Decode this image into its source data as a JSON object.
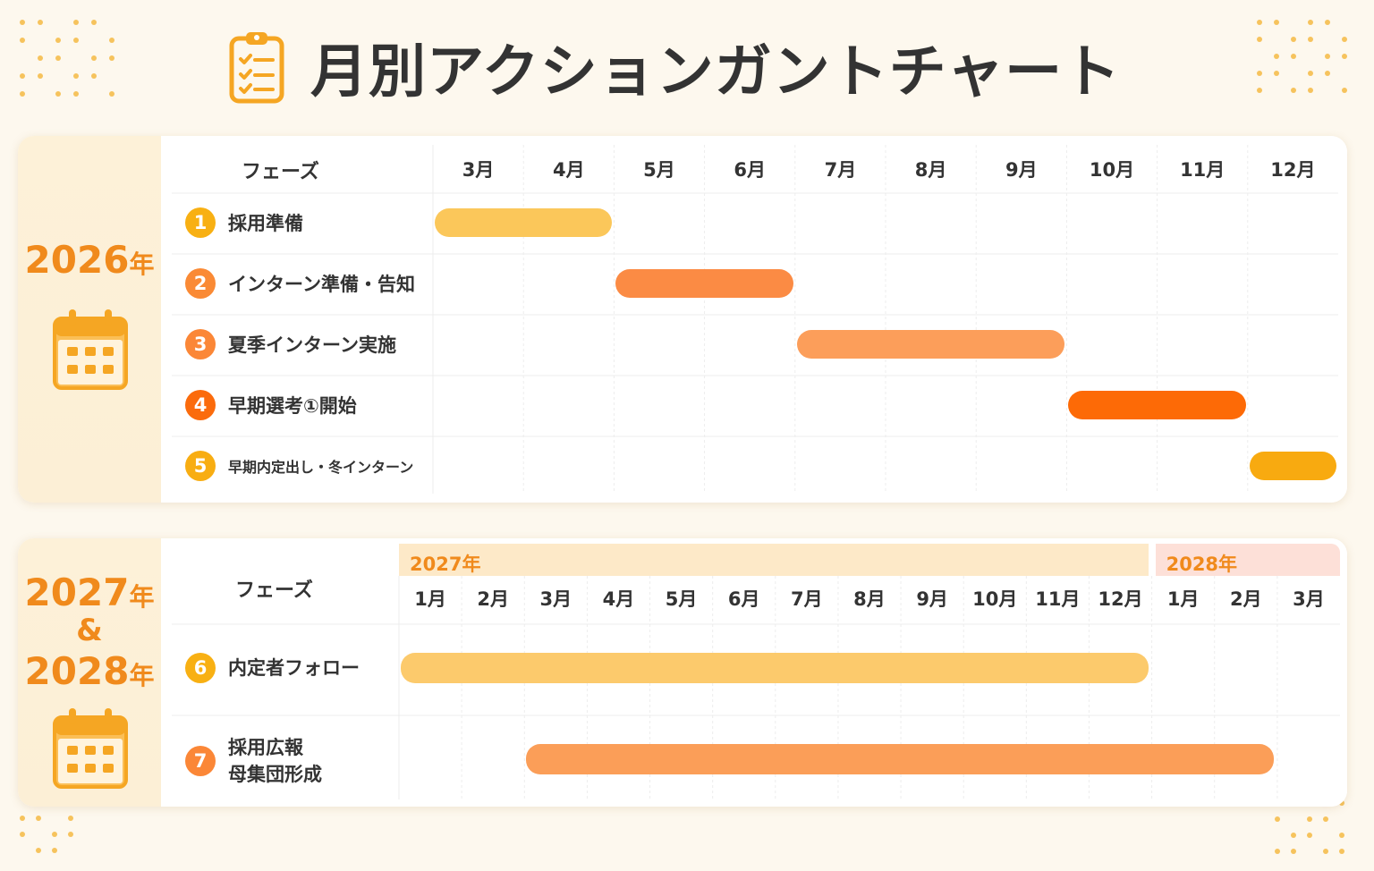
{
  "title": "月別アクションガントチャート",
  "icons": {
    "title": "clipboard-checklist-icon",
    "calendar": "calendar-icon"
  },
  "colors": {
    "accent": "#f08a1c",
    "bar1": "#fbc75a",
    "bar2": "#fb8b44",
    "bar3": "#fc9e5a",
    "bar4": "#fd6a06",
    "bar5": "#f8aa10",
    "bar6": "#fcca6c",
    "bar7": "#fb9e58"
  },
  "chart_data": [
    {
      "type": "gantt",
      "year_label": "2026年",
      "phase_header": "フェーズ",
      "months": [
        "3月",
        "4月",
        "5月",
        "6月",
        "7月",
        "8月",
        "9月",
        "10月",
        "11月",
        "12月"
      ],
      "phases": [
        {
          "number": "1",
          "label": "採用準備",
          "start": 0,
          "end": 2
        },
        {
          "number": "2",
          "label": "インターン準備・告知",
          "start": 2,
          "end": 4
        },
        {
          "number": "3",
          "label": "夏季インターン実施",
          "start": 4,
          "end": 7
        },
        {
          "number": "4",
          "label": "早期選考①開始",
          "start": 7,
          "end": 9
        },
        {
          "number": "5",
          "label": "早期内定出し・冬インターン",
          "start": 9,
          "end": 10
        }
      ]
    },
    {
      "type": "gantt",
      "year_label_top": "2027年",
      "year_label_amp": "&",
      "year_label_bottom": "2028年",
      "phase_header": "フェーズ",
      "year_bands": [
        {
          "label": "2027年",
          "start": 0,
          "end": 12
        },
        {
          "label": "2028年",
          "start": 12,
          "end": 15
        }
      ],
      "months": [
        "1月",
        "2月",
        "3月",
        "4月",
        "5月",
        "6月",
        "7月",
        "8月",
        "9月",
        "10月",
        "11月",
        "12月",
        "1月",
        "2月",
        "3月"
      ],
      "phases": [
        {
          "number": "6",
          "label": "内定者フォロー",
          "start": 0,
          "end": 12
        },
        {
          "number": "7",
          "label": "採用広報\n母集団形成",
          "start": 2,
          "end": 14
        }
      ]
    }
  ]
}
